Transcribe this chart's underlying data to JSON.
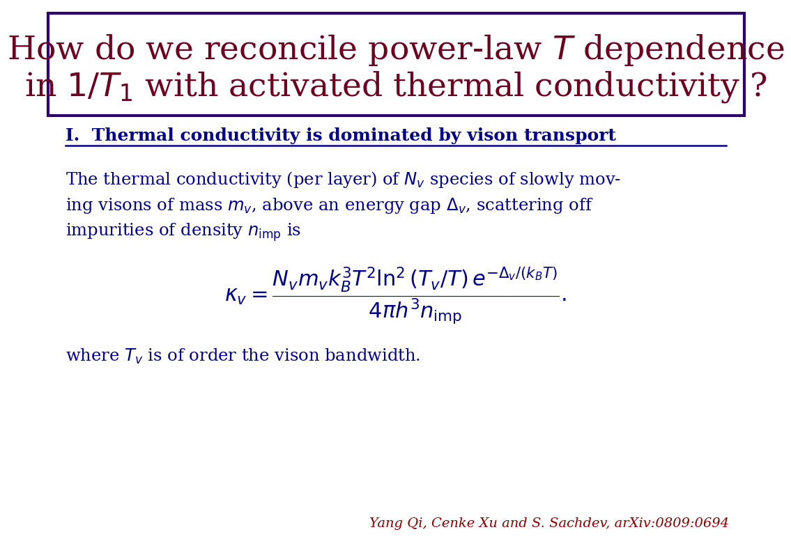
{
  "bg_color": "#ffffff",
  "title_box_edgecolor": "#2e006e",
  "title_text_color": "#6b0020",
  "section_color": "#00008b",
  "body_color": "#00008b",
  "citation_color": "#8b0000",
  "title_line1": "How do we reconcile power-law $T$ dependence",
  "title_line2": "in $\\mathit{1/T_1}$ with activated thermal conductivity ?",
  "section_title": "I.  Thermal conductivity is dominated by vison transport",
  "citation": "Yang Qi, Cenke Xu and S. Sachdev, arXiv:0809:0694"
}
